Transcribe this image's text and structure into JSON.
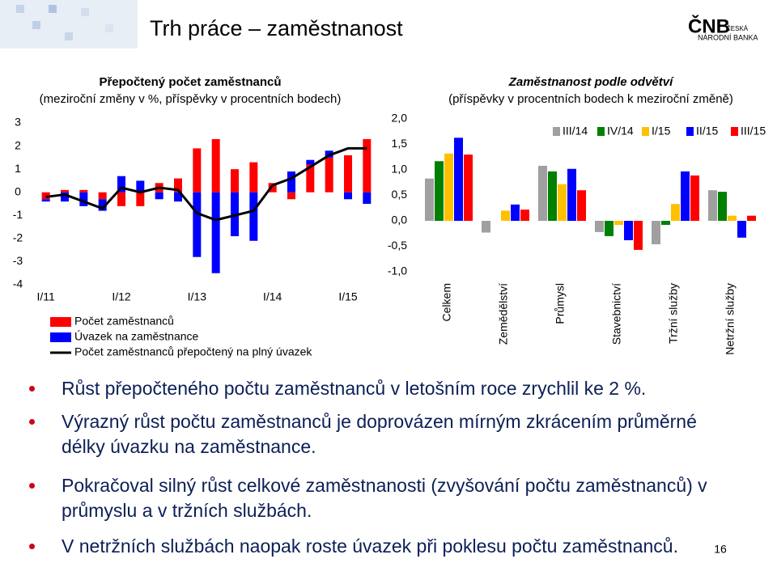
{
  "slide_title": "Trh práce – zaměstnanost",
  "logo": {
    "mark": "ČNB",
    "line1": "ČESKÁ",
    "line2": "NÁRODNÍ BANKA"
  },
  "chart_data": [
    {
      "type": "bar",
      "title": "Přepočtený počet zaměstnanců",
      "subtitle": "(meziroční změny v %, příspěvky v procentních bodech)",
      "categories": [
        "I/11",
        null,
        null,
        null,
        "I/12",
        null,
        null,
        null,
        "I/13",
        null,
        null,
        null,
        "I/14",
        null,
        null,
        null,
        "I/15",
        null
      ],
      "series": [
        {
          "name": "Počet zaměstnanců",
          "color": "#ff0000",
          "values": [
            -0.3,
            0.1,
            0.1,
            -0.3,
            -0.6,
            -0.6,
            0.4,
            0.6,
            1.9,
            2.3,
            1.0,
            1.3,
            0.4,
            -0.3,
            1.2,
            1.5,
            1.6,
            2.3
          ]
        },
        {
          "name": "Úvazek na zaměstnance",
          "color": "#0000ff",
          "values": [
            -0.1,
            -0.4,
            -0.6,
            -0.5,
            0.7,
            0.5,
            -0.3,
            -0.4,
            -2.8,
            -3.5,
            -1.9,
            -2.1,
            0.0,
            0.9,
            0.2,
            0.3,
            -0.3,
            -0.5
          ]
        },
        {
          "name": "Počet zaměstnanců přepočtený na plný úvazek",
          "color": "#000000",
          "type": "line",
          "values": [
            -0.2,
            -0.1,
            -0.4,
            -0.7,
            0.2,
            0.0,
            0.2,
            0.1,
            -0.9,
            -1.2,
            -1.0,
            -0.8,
            0.3,
            0.6,
            1.1,
            1.6,
            1.9,
            1.9
          ]
        }
      ],
      "ylim": [
        -4,
        3
      ],
      "yticks": [
        -4,
        -3,
        -2,
        -1,
        0,
        1,
        2,
        3
      ]
    },
    {
      "type": "bar",
      "title": "Zaměstnanost podle odvětví",
      "subtitle": "(příspěvky v procentních bodech k meziroční změně)",
      "categories": [
        "Celkem",
        "Zemědělství",
        "Průmysl",
        "Stavebnictví",
        "Tržní služby",
        "Netržní služby"
      ],
      "series": [
        {
          "name": "III/14",
          "color": "#a0a0a0",
          "values": [
            0.83,
            -0.23,
            1.08,
            -0.22,
            -0.46,
            0.6
          ]
        },
        {
          "name": "IV/14",
          "color": "#008000",
          "values": [
            1.17,
            0.0,
            0.97,
            -0.3,
            -0.08,
            0.57
          ]
        },
        {
          "name": "I/15",
          "color": "#ffc000",
          "values": [
            1.32,
            0.2,
            0.72,
            -0.08,
            0.33,
            0.1
          ]
        },
        {
          "name": "II/15",
          "color": "#0000ff",
          "values": [
            1.63,
            0.32,
            1.02,
            -0.38,
            0.97,
            -0.33
          ]
        },
        {
          "name": "III/15",
          "color": "#ff0000",
          "values": [
            1.3,
            0.22,
            0.6,
            -0.57,
            0.89,
            0.1
          ]
        }
      ],
      "ylim": [
        -1,
        2
      ],
      "yticks": [
        {
          "value": -1,
          "label": "-1,0"
        },
        {
          "value": -0.5,
          "label": "-0,5"
        },
        {
          "value": 0,
          "label": "0,0"
        },
        {
          "value": 0.5,
          "label": "0,5"
        },
        {
          "value": 1,
          "label": "1,0"
        },
        {
          "value": 1.5,
          "label": "1,5"
        },
        {
          "value": 2,
          "label": "2,0"
        }
      ]
    }
  ],
  "bullets": [
    "Růst přepočteného počtu zaměstnanců v letošním roce zrychlil ke 2 %.",
    "Výrazný růst počtu zaměstnanců je doprovázen mírným zkrácením průměrné délky úvazku na zaměstnance.",
    "Pokračoval silný růst celkové zaměstnanosti (zvyšování počtu zaměstnanců) v průmyslu a v tržních službách.",
    "V netržních službách naopak roste úvazek při poklesu počtu zaměstnanců."
  ],
  "page_number": "16"
}
